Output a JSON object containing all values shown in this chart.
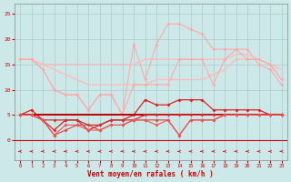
{
  "x": [
    0,
    1,
    2,
    3,
    4,
    5,
    6,
    7,
    8,
    9,
    10,
    11,
    12,
    13,
    14,
    15,
    16,
    17,
    18,
    19,
    20,
    21,
    22,
    23
  ],
  "line_pink_high": [
    16,
    16,
    14,
    10,
    9,
    9,
    6,
    9,
    9,
    5,
    19,
    12,
    19,
    23,
    23,
    22,
    21,
    18,
    18,
    18,
    18,
    15,
    14,
    11
  ],
  "line_pink_flat1": [
    16,
    16,
    15,
    15,
    15,
    15,
    15,
    15,
    15,
    15,
    15,
    16,
    16,
    16,
    16,
    16,
    16,
    16,
    16,
    17,
    17,
    16,
    15,
    14
  ],
  "line_pink_flat2": [
    16,
    16,
    15,
    14,
    13,
    12,
    11,
    11,
    11,
    11,
    11,
    11,
    12,
    12,
    12,
    12,
    12,
    13,
    14,
    16,
    16,
    16,
    15,
    12
  ],
  "line_pink_low": [
    16,
    16,
    14,
    10,
    9,
    9,
    6,
    9,
    9,
    5,
    11,
    11,
    11,
    11,
    16,
    16,
    16,
    11,
    16,
    18,
    16,
    16,
    15,
    12
  ],
  "line_red_spiky": [
    5,
    6,
    4,
    2,
    4,
    4,
    2,
    3,
    4,
    4,
    5,
    8,
    7,
    7,
    8,
    8,
    8,
    6,
    6,
    6,
    6,
    6,
    5,
    5
  ],
  "line_red_flat": [
    5,
    5,
    5,
    5,
    5,
    5,
    5,
    5,
    5,
    5,
    5,
    5,
    5,
    5,
    5,
    5,
    5,
    5,
    5,
    5,
    5,
    5,
    5,
    5
  ],
  "line_dark_mid": [
    5,
    5,
    4,
    4,
    4,
    4,
    3,
    3,
    4,
    4,
    4,
    5,
    5,
    5,
    5,
    5,
    5,
    5,
    5,
    5,
    5,
    5,
    5,
    5
  ],
  "line_dark_low1": [
    5,
    5,
    4,
    1,
    2,
    3,
    3,
    2,
    3,
    3,
    4,
    4,
    4,
    4,
    1,
    4,
    4,
    4,
    5,
    5,
    5,
    5,
    5,
    5
  ],
  "line_dark_low2": [
    5,
    5,
    4,
    1,
    3,
    3,
    2,
    2,
    3,
    3,
    4,
    4,
    3,
    4,
    1,
    4,
    4,
    4,
    5,
    5,
    5,
    5,
    5,
    5
  ],
  "background": "#cce8e8",
  "grid_color": "#aacccc",
  "xlabel": "Vent moyen/en rafales ( km/h )",
  "yticks": [
    0,
    5,
    10,
    15,
    20,
    25
  ],
  "ylim": [
    -4,
    27
  ],
  "xlim": [
    -0.5,
    23.5
  ]
}
